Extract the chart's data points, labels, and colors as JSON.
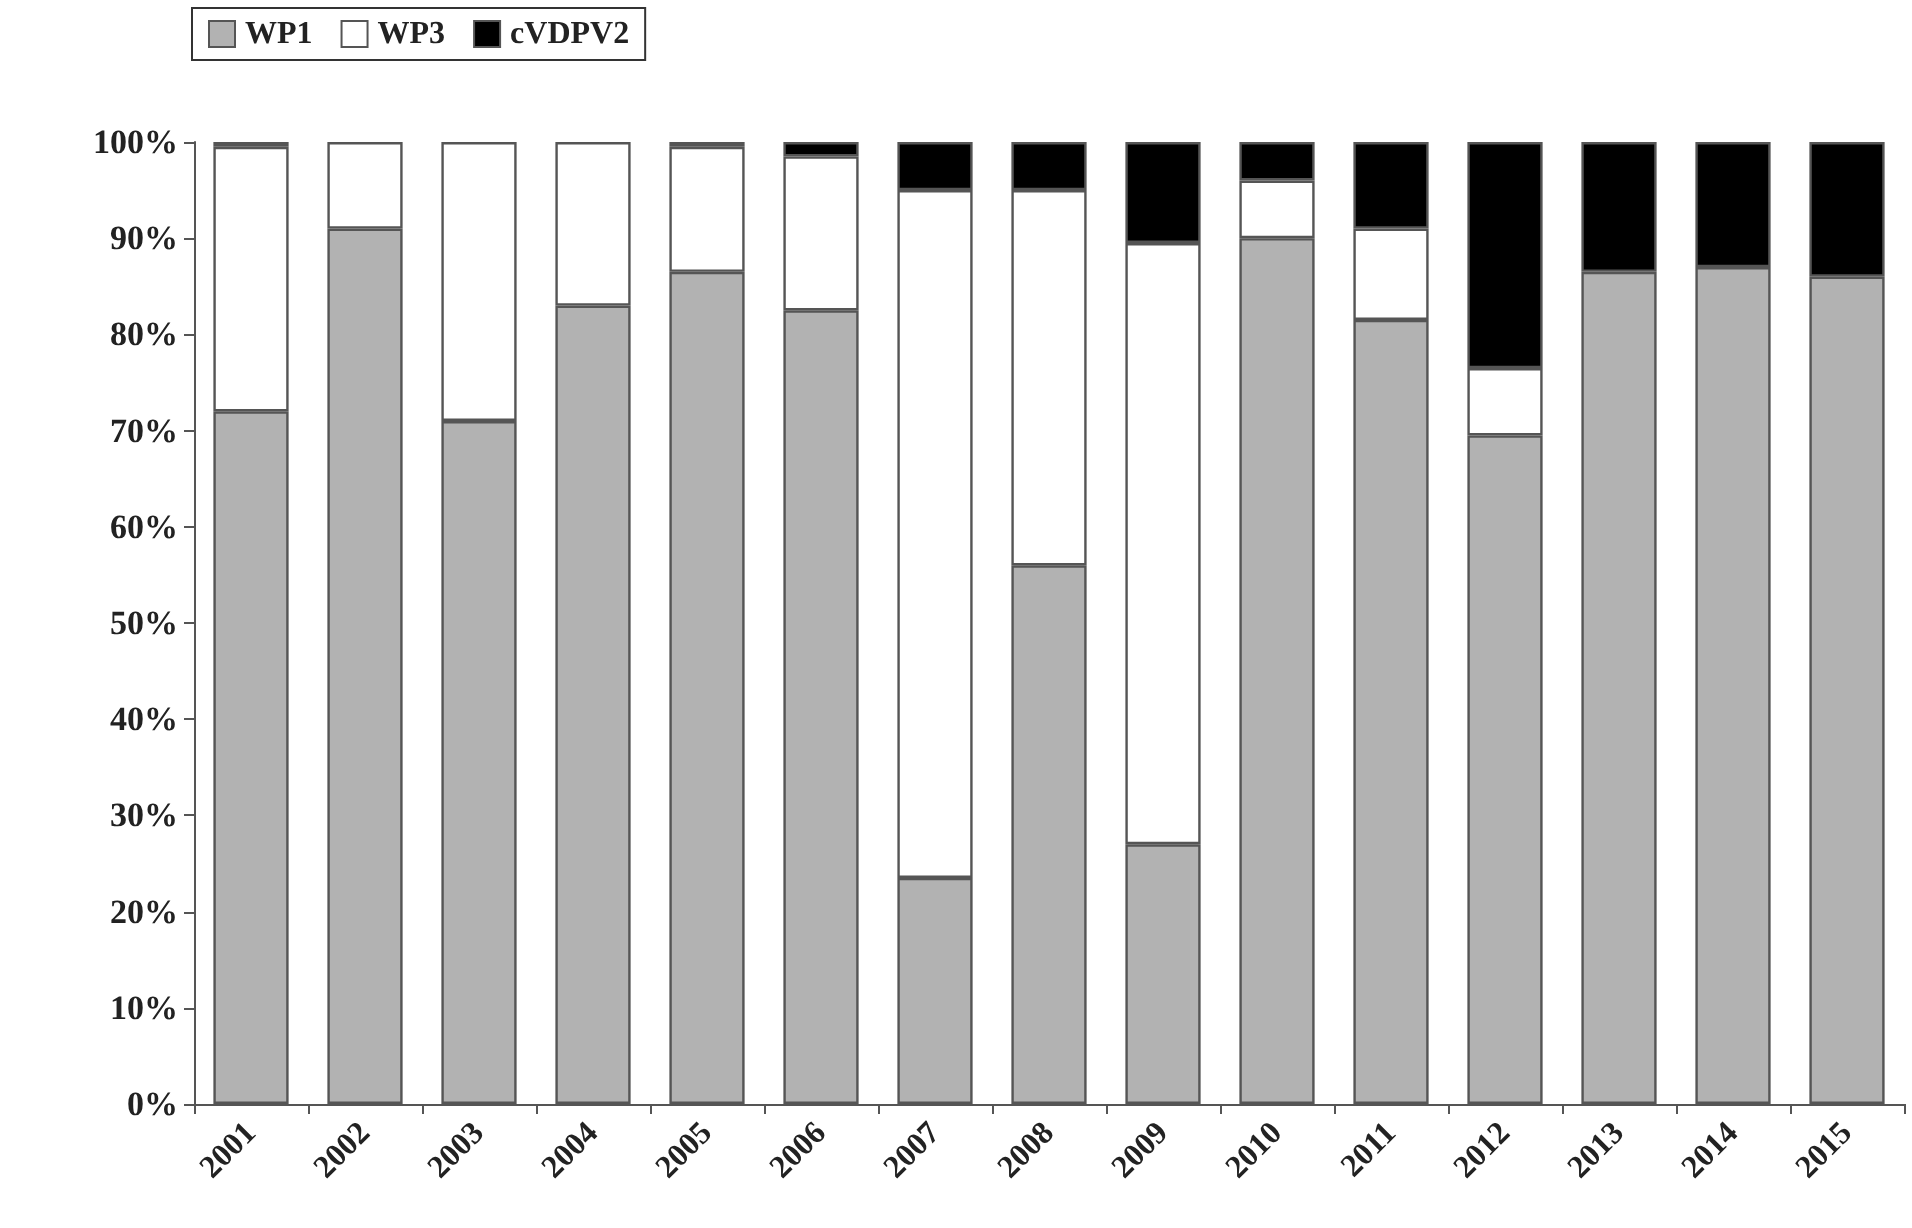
{
  "chart_data": {
    "type": "bar",
    "stacked": true,
    "categories": [
      "2001",
      "2002",
      "2003",
      "2004",
      "2005",
      "2006",
      "2007",
      "2008",
      "2009",
      "2010",
      "2011",
      "2012",
      "2013",
      "2014",
      "2015"
    ],
    "series": [
      {
        "name": "WP1",
        "color": "#b2b2b2",
        "values": [
          72,
          91,
          71,
          83,
          86.5,
          82.5,
          23.5,
          56,
          27,
          90,
          81.5,
          69.5,
          86.5,
          87,
          86
        ]
      },
      {
        "name": "WP3",
        "color": "#ffffff",
        "values": [
          27.5,
          9,
          29,
          17,
          13,
          16,
          71.5,
          39,
          62.5,
          6,
          9.5,
          7,
          0,
          0,
          0
        ]
      },
      {
        "name": "cVDPV2",
        "color": "#000000",
        "values": [
          0.5,
          0,
          0,
          0,
          0.5,
          1.5,
          5,
          5,
          10.5,
          4,
          9,
          23.5,
          13.5,
          13,
          14
        ]
      }
    ],
    "ylim": [
      0,
      100
    ],
    "yticks": [
      {
        "value": 0,
        "label": "0%"
      },
      {
        "value": 10,
        "label": "10%"
      },
      {
        "value": 20,
        "label": "20%"
      },
      {
        "value": 30,
        "label": "30%"
      },
      {
        "value": 40,
        "label": "40%"
      },
      {
        "value": 50,
        "label": "50%"
      },
      {
        "value": 60,
        "label": "60%"
      },
      {
        "value": 70,
        "label": "70%"
      },
      {
        "value": 80,
        "label": "80%"
      },
      {
        "value": 90,
        "label": "90%"
      },
      {
        "value": 100,
        "label": "100%"
      }
    ],
    "grid": false,
    "legend": "top left"
  }
}
